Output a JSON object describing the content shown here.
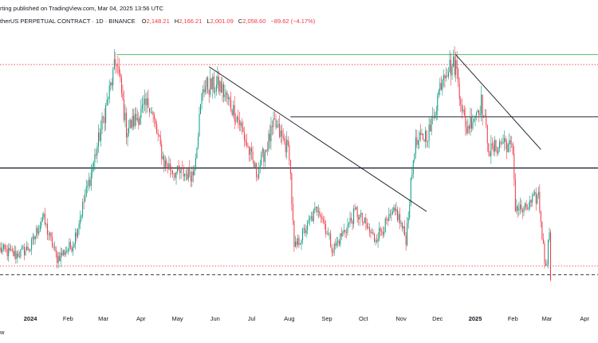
{
  "header": {
    "byline": "rting published on TradingView.com, Mar 04, 2025 13:56 UTC",
    "symbol": "therUS PERPETUAL CONTRACT · 1D · BINANCE",
    "ohlc": [
      {
        "prefix": "O",
        "value": "2,148.21"
      },
      {
        "prefix": "H",
        "value": "2,166.21"
      },
      {
        "prefix": "L",
        "value": "2,001.09"
      },
      {
        "prefix": "C",
        "value": "2,058.60"
      },
      {
        "prefix": "",
        "value": "−89.62 (−4.17%)"
      }
    ]
  },
  "footer": {
    "label": "w"
  },
  "colors": {
    "up": "#089981",
    "down": "#f23645",
    "trend": "#131722",
    "green_line": "#22ab3c"
  },
  "chart_data": {
    "type": "candlestick",
    "x_tick_labels": [
      {
        "label": "2024",
        "bold": true
      },
      {
        "label": "Feb",
        "bold": false
      },
      {
        "label": "Mar",
        "bold": false
      },
      {
        "label": "Apr",
        "bold": false
      },
      {
        "label": "May",
        "bold": false
      },
      {
        "label": "Jun",
        "bold": false
      },
      {
        "label": "Jul",
        "bold": false
      },
      {
        "label": "Aug",
        "bold": false
      },
      {
        "label": "Sep",
        "bold": false
      },
      {
        "label": "Oct",
        "bold": false
      },
      {
        "label": "Nov",
        "bold": false
      },
      {
        "label": "Dec",
        "bold": false
      },
      {
        "label": "2025",
        "bold": true
      },
      {
        "label": "Feb",
        "bold": false
      },
      {
        "label": "Mar",
        "bold": false
      },
      {
        "label": "Apr",
        "bold": false
      }
    ],
    "x_range": [
      "2023-12-07",
      "2025-04-12"
    ],
    "y_range_approx": [
      1750,
      4300
    ],
    "horizontal_levels": [
      {
        "price": 4090,
        "style": "solid",
        "color": "green",
        "from": "2024-03-12",
        "to": "2025-04-12"
      },
      {
        "price": 4000,
        "style": "dotted",
        "color": "red"
      },
      {
        "price": 3520,
        "style": "solid",
        "color": "black",
        "from": "2024-08-02",
        "to": "2025-04-12"
      },
      {
        "price": 3050,
        "style": "solid",
        "color": "black",
        "width": "thick"
      },
      {
        "price": 2150,
        "style": "dotted",
        "color": "red"
      },
      {
        "price": 2070,
        "style": "dashed",
        "color": "black"
      }
    ],
    "trendlines": [
      {
        "from": [
          "2024-05-27",
          3980
        ],
        "to": [
          "2024-11-22",
          2650
        ]
      },
      {
        "from": [
          "2024-12-16",
          4090
        ],
        "to": [
          "2025-02-24",
          3220
        ]
      }
    ],
    "price_path": [
      [
        "2023-12-07",
        2300
      ],
      [
        "2023-12-20",
        2250
      ],
      [
        "2024-01-01",
        2320
      ],
      [
        "2024-01-11",
        2600
      ],
      [
        "2024-01-23",
        2220
      ],
      [
        "2024-02-05",
        2350
      ],
      [
        "2024-02-20",
        3000
      ],
      [
        "2024-03-12",
        4050
      ],
      [
        "2024-03-20",
        3400
      ],
      [
        "2024-04-08",
        3650
      ],
      [
        "2024-04-20",
        3100
      ],
      [
        "2024-05-01",
        3000
      ],
      [
        "2024-05-14",
        3000
      ],
      [
        "2024-05-22",
        3800
      ],
      [
        "2024-06-05",
        3800
      ],
      [
        "2024-06-20",
        3500
      ],
      [
        "2024-07-05",
        3000
      ],
      [
        "2024-07-20",
        3450
      ],
      [
        "2024-08-01",
        3200
      ],
      [
        "2024-08-05",
        2300
      ],
      [
        "2024-08-25",
        2700
      ],
      [
        "2024-09-06",
        2300
      ],
      [
        "2024-09-25",
        2650
      ],
      [
        "2024-10-10",
        2400
      ],
      [
        "2024-10-28",
        2650
      ],
      [
        "2024-11-05",
        2400
      ],
      [
        "2024-11-12",
        3250
      ],
      [
        "2024-11-25",
        3400
      ],
      [
        "2024-12-06",
        3950
      ],
      [
        "2024-12-16",
        4000
      ],
      [
        "2024-12-24",
        3400
      ],
      [
        "2025-01-06",
        3650
      ],
      [
        "2025-01-13",
        3200
      ],
      [
        "2025-01-25",
        3300
      ],
      [
        "2025-02-01",
        3200
      ],
      [
        "2025-02-03",
        2700
      ],
      [
        "2025-02-10",
        2650
      ],
      [
        "2025-02-22",
        2800
      ],
      [
        "2025-02-27",
        2200
      ],
      [
        "2025-03-01",
        2200
      ],
      [
        "2025-03-03",
        2500
      ],
      [
        "2025-03-04",
        2070
      ]
    ]
  }
}
